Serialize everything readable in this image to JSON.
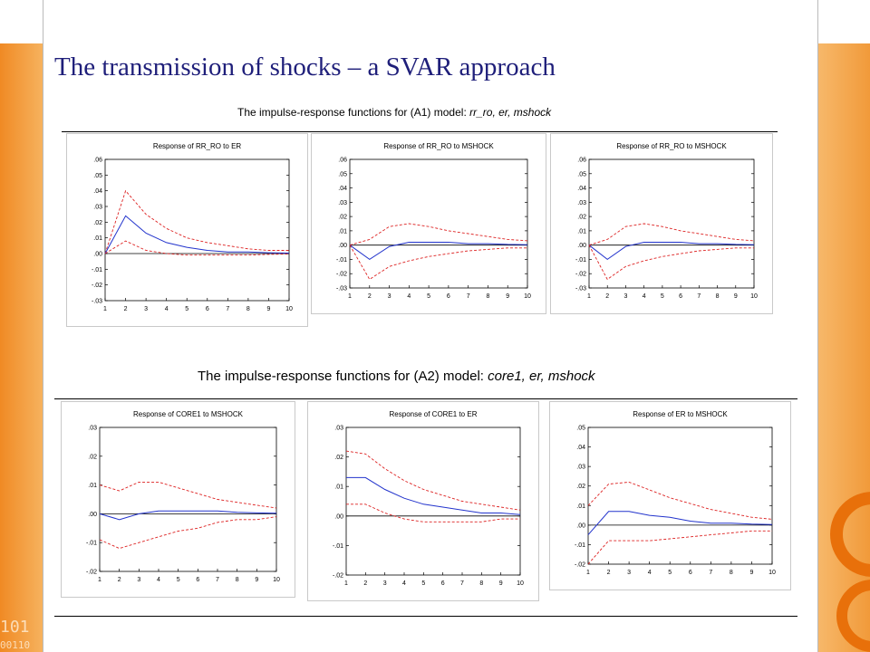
{
  "slide": {
    "title": "The transmission of shocks – a SVAR approach"
  },
  "sections": [
    {
      "title_prefix": "The impulse-response functions for (A1) model: ",
      "title_model": "rr_ro, er, mshock"
    },
    {
      "title_prefix": "The impulse-response functions for (A2) model: ",
      "title_model": "core1, er, mshock"
    }
  ],
  "colors": {
    "response": "#2233cc",
    "band": "#dd2222",
    "zero_line": "#000000",
    "title": "#1f1f7a",
    "accent": "#f08a24"
  },
  "chart_data": [
    {
      "type": "line",
      "title": "Response of RR_RO to ER",
      "x": [
        1,
        2,
        3,
        4,
        5,
        6,
        7,
        8,
        9,
        10
      ],
      "xlim": [
        1,
        10
      ],
      "ylim": [
        -0.03,
        0.06
      ],
      "yticks": [
        ".06",
        ".05",
        ".04",
        ".03",
        ".02",
        ".01",
        ".00",
        "-.01",
        "-.02",
        "-.03"
      ],
      "ytick_values": [
        0.06,
        0.05,
        0.04,
        0.03,
        0.02,
        0.01,
        0.0,
        -0.01,
        -0.02,
        -0.03
      ],
      "series": [
        {
          "role": "upper",
          "values": [
            0.0,
            0.04,
            0.025,
            0.016,
            0.01,
            0.007,
            0.005,
            0.003,
            0.002,
            0.002
          ]
        },
        {
          "role": "response",
          "values": [
            0.0,
            0.024,
            0.013,
            0.007,
            0.004,
            0.002,
            0.001,
            0.001,
            0.0005,
            0.0003
          ]
        },
        {
          "role": "lower",
          "values": [
            0.0,
            0.008,
            0.002,
            0.0,
            -0.001,
            -0.001,
            -0.001,
            -0.001,
            -0.0005,
            -0.0003
          ]
        }
      ]
    },
    {
      "type": "line",
      "title": "Response of RR_RO to MSHOCK",
      "x": [
        1,
        2,
        3,
        4,
        5,
        6,
        7,
        8,
        9,
        10
      ],
      "xlim": [
        1,
        10
      ],
      "ylim": [
        -0.03,
        0.06
      ],
      "yticks": [
        ".06",
        ".05",
        ".04",
        ".03",
        ".02",
        ".01",
        ".00",
        "-.01",
        "-.02",
        "-.03"
      ],
      "ytick_values": [
        0.06,
        0.05,
        0.04,
        0.03,
        0.02,
        0.01,
        0.0,
        -0.01,
        -0.02,
        -0.03
      ],
      "series": [
        {
          "role": "upper",
          "values": [
            0.0,
            0.004,
            0.013,
            0.015,
            0.013,
            0.01,
            0.008,
            0.006,
            0.004,
            0.003
          ]
        },
        {
          "role": "response",
          "values": [
            0.0,
            -0.01,
            -0.001,
            0.002,
            0.002,
            0.002,
            0.001,
            0.001,
            0.0005,
            0.0003
          ]
        },
        {
          "role": "lower",
          "values": [
            0.0,
            -0.024,
            -0.015,
            -0.011,
            -0.008,
            -0.006,
            -0.004,
            -0.003,
            -0.002,
            -0.002
          ]
        }
      ]
    },
    {
      "type": "line",
      "title": "Response of RR_RO to MSHOCK",
      "x": [
        1,
        2,
        3,
        4,
        5,
        6,
        7,
        8,
        9,
        10
      ],
      "xlim": [
        1,
        10
      ],
      "ylim": [
        -0.03,
        0.06
      ],
      "yticks": [
        ".06",
        ".05",
        ".04",
        ".03",
        ".02",
        ".01",
        ".00",
        "-.01",
        "-.02",
        "-.03"
      ],
      "ytick_values": [
        0.06,
        0.05,
        0.04,
        0.03,
        0.02,
        0.01,
        0.0,
        -0.01,
        -0.02,
        -0.03
      ],
      "series": [
        {
          "role": "upper",
          "values": [
            0.0,
            0.004,
            0.013,
            0.015,
            0.013,
            0.01,
            0.008,
            0.006,
            0.004,
            0.003
          ]
        },
        {
          "role": "response",
          "values": [
            0.0,
            -0.01,
            -0.001,
            0.002,
            0.002,
            0.002,
            0.001,
            0.001,
            0.0005,
            0.0003
          ]
        },
        {
          "role": "lower",
          "values": [
            0.0,
            -0.024,
            -0.015,
            -0.011,
            -0.008,
            -0.006,
            -0.004,
            -0.003,
            -0.002,
            -0.002
          ]
        }
      ]
    },
    {
      "type": "line",
      "title": "Response of CORE1 to MSHOCK",
      "x": [
        1,
        2,
        3,
        4,
        5,
        6,
        7,
        8,
        9,
        10
      ],
      "xlim": [
        1,
        10
      ],
      "ylim": [
        -0.02,
        0.03
      ],
      "yticks": [
        ".03",
        ".02",
        ".01",
        ".00",
        "-.01",
        "-.02"
      ],
      "ytick_values": [
        0.03,
        0.02,
        0.01,
        0.0,
        -0.01,
        -0.02
      ],
      "series": [
        {
          "role": "upper",
          "values": [
            0.01,
            0.008,
            0.011,
            0.011,
            0.009,
            0.007,
            0.005,
            0.004,
            0.003,
            0.002
          ]
        },
        {
          "role": "response",
          "values": [
            0.0,
            -0.002,
            0.0,
            0.001,
            0.001,
            0.001,
            0.001,
            0.0005,
            0.0003,
            0.0002
          ]
        },
        {
          "role": "lower",
          "values": [
            -0.009,
            -0.012,
            -0.01,
            -0.008,
            -0.006,
            -0.005,
            -0.003,
            -0.002,
            -0.002,
            -0.001
          ]
        }
      ]
    },
    {
      "type": "line",
      "title": "Response of CORE1 to ER",
      "x": [
        1,
        2,
        3,
        4,
        5,
        6,
        7,
        8,
        9,
        10
      ],
      "xlim": [
        1,
        10
      ],
      "ylim": [
        -0.02,
        0.03
      ],
      "yticks": [
        ".03",
        ".02",
        ".01",
        ".00",
        "-.01",
        "-.02"
      ],
      "ytick_values": [
        0.03,
        0.02,
        0.01,
        0.0,
        -0.01,
        -0.02
      ],
      "series": [
        {
          "role": "upper",
          "values": [
            0.022,
            0.021,
            0.016,
            0.012,
            0.009,
            0.007,
            0.005,
            0.004,
            0.003,
            0.002
          ]
        },
        {
          "role": "response",
          "values": [
            0.013,
            0.013,
            0.009,
            0.006,
            0.004,
            0.003,
            0.002,
            0.001,
            0.001,
            0.0005
          ]
        },
        {
          "role": "lower",
          "values": [
            0.004,
            0.004,
            0.001,
            -0.001,
            -0.002,
            -0.002,
            -0.002,
            -0.002,
            -0.001,
            -0.001
          ]
        }
      ]
    },
    {
      "type": "line",
      "title": "Response of ER to MSHOCK",
      "x": [
        1,
        2,
        3,
        4,
        5,
        6,
        7,
        8,
        9,
        10
      ],
      "xlim": [
        1,
        10
      ],
      "ylim": [
        -0.02,
        0.05
      ],
      "yticks": [
        ".05",
        ".04",
        ".03",
        ".02",
        ".01",
        ".00",
        "-.01",
        "-.02"
      ],
      "ytick_values": [
        0.05,
        0.04,
        0.03,
        0.02,
        0.01,
        0.0,
        -0.01,
        -0.02
      ],
      "series": [
        {
          "role": "upper",
          "values": [
            0.01,
            0.021,
            0.022,
            0.018,
            0.014,
            0.011,
            0.008,
            0.006,
            0.004,
            0.003
          ]
        },
        {
          "role": "response",
          "values": [
            -0.005,
            0.007,
            0.007,
            0.005,
            0.004,
            0.002,
            0.001,
            0.001,
            0.0005,
            0.0003
          ]
        },
        {
          "role": "lower",
          "values": [
            -0.02,
            -0.008,
            -0.008,
            -0.008,
            -0.007,
            -0.006,
            -0.005,
            -0.004,
            -0.003,
            -0.003
          ]
        }
      ]
    }
  ]
}
